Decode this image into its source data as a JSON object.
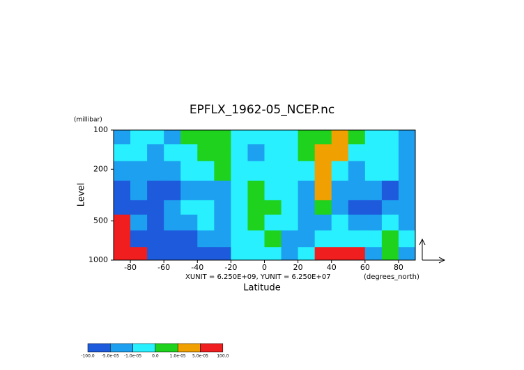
{
  "chart_data": {
    "type": "contour",
    "title": "EPFLX_1962-05_NCEP.nc",
    "ylabel": "Level",
    "yunit": "(millibar)",
    "xlabel": "Latitude",
    "xunit": "(degrees_north)",
    "annotation": "XUNIT = 6.250E+09, YUNIT = 6.250E+07",
    "xlim": [
      -90,
      90
    ],
    "xticks": [
      -80,
      -60,
      -40,
      -20,
      0,
      20,
      40,
      60,
      80
    ],
    "ylim": [
      100,
      1000
    ],
    "yticks": [
      100,
      200,
      500,
      1000
    ],
    "ylog": true,
    "yinvert": true,
    "x": [
      -85,
      -75,
      -65,
      -55,
      -45,
      -35,
      -25,
      -15,
      -5,
      5,
      15,
      25,
      35,
      45,
      55,
      65,
      75,
      85
    ],
    "y": [
      110,
      150,
      200,
      300,
      400,
      500,
      700,
      900
    ],
    "z": [
      [
        -3e-05,
        -5e-06,
        -5e-06,
        -3e-05,
        5e-06,
        5e-06,
        5e-06,
        -5e-06,
        -5e-06,
        -5e-06,
        -5e-06,
        5e-06,
        5e-06,
        3e-05,
        5e-06,
        -5e-06,
        -5e-06,
        -3e-05
      ],
      [
        -5e-06,
        -5e-06,
        -3e-05,
        -5e-06,
        -5e-06,
        5e-06,
        5e-06,
        -5e-06,
        -3e-05,
        -5e-06,
        -5e-06,
        5e-06,
        3e-05,
        3e-05,
        -5e-06,
        -5e-06,
        -5e-06,
        -3e-05
      ],
      [
        -3e-05,
        -3e-05,
        -3e-05,
        -3e-05,
        -5e-06,
        -5e-06,
        5e-06,
        -5e-06,
        -5e-06,
        -5e-06,
        -5e-06,
        -5e-06,
        3e-05,
        -5e-06,
        -3e-05,
        -5e-06,
        -5e-06,
        -3e-05
      ],
      [
        -6e-05,
        -3e-05,
        -6e-05,
        -6e-05,
        -3e-05,
        -3e-05,
        -3e-05,
        -5e-06,
        5e-06,
        -5e-06,
        -5e-06,
        -3e-05,
        3e-05,
        -3e-05,
        -3e-05,
        -3e-05,
        -6e-05,
        -3e-05
      ],
      [
        -6e-05,
        -6e-05,
        -6e-05,
        -3e-05,
        -5e-06,
        -5e-06,
        -3e-05,
        -5e-06,
        5e-06,
        5e-06,
        -5e-06,
        -3e-05,
        5e-06,
        -3e-05,
        -6e-05,
        -6e-05,
        -3e-05,
        -3e-05
      ],
      [
        0.0001,
        -3e-05,
        -6e-05,
        -3e-05,
        -3e-05,
        -5e-06,
        -3e-05,
        -5e-06,
        5e-06,
        -5e-06,
        -5e-06,
        -3e-05,
        -3e-05,
        -5e-06,
        -3e-05,
        -3e-05,
        -5e-06,
        -3e-05
      ],
      [
        0.0001,
        -6e-05,
        -6e-05,
        -6e-05,
        -6e-05,
        -3e-05,
        -3e-05,
        -5e-06,
        -5e-06,
        5e-06,
        -3e-05,
        -3e-05,
        -5e-06,
        -5e-06,
        -5e-06,
        -5e-06,
        5e-06,
        -5e-06
      ],
      [
        0.0001,
        0.0001,
        -6e-05,
        -6e-05,
        -6e-05,
        -6e-05,
        -6e-05,
        -5e-06,
        -5e-06,
        -5e-06,
        -3e-05,
        -5e-06,
        0.0001,
        0.0001,
        0.0001,
        -3e-05,
        5e-06,
        -3e-05
      ]
    ],
    "clevels": [
      {
        "value": -100,
        "label": "-100.0"
      },
      {
        "value": -5e-05,
        "label": "-5.0e-05"
      },
      {
        "value": -1e-05,
        "label": "-1.0e-05"
      },
      {
        "value": 0,
        "label": "0.0"
      },
      {
        "value": 1e-05,
        "label": "1.0e-05"
      },
      {
        "value": 5e-05,
        "label": "5.0e-05"
      },
      {
        "value": 100,
        "label": "100.0"
      }
    ],
    "colors": [
      "#1e5adc",
      "#1ea0f0",
      "#28f0ff",
      "#1ed21e",
      "#f0a000",
      "#f01e1e"
    ]
  }
}
